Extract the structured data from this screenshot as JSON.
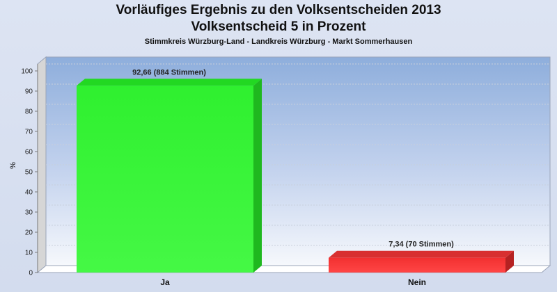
{
  "chart_data": {
    "type": "bar",
    "title": "Vorläufiges Ergebnis zu den Volksentscheiden 2013",
    "subtitle": "Volksentscheid 5 in Prozent",
    "subsubtitle": "Stimmkreis Würzburg-Land - Landkreis Würzburg - Markt Sommerhausen",
    "ylabel": "%",
    "ylim": [
      0,
      100
    ],
    "yticks": [
      0,
      10,
      20,
      30,
      40,
      50,
      60,
      70,
      80,
      90,
      100
    ],
    "categories": [
      "Ja",
      "Nein"
    ],
    "values": [
      92.66,
      7.34
    ],
    "data_labels": [
      "92,66 (884 Stimmen)",
      "7,34 (70 Stimmen)"
    ],
    "colors": [
      "#33ee33",
      "#ee2e2e"
    ],
    "grid": true
  }
}
